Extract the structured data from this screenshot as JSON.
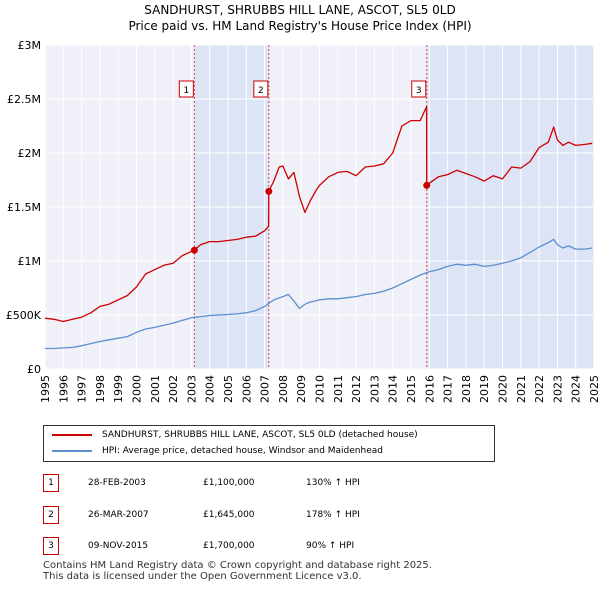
{
  "title_line1": "SANDHURST, SHRUBBS HILL LANE, ASCOT, SL5 0LD",
  "title_line2": "Price paid vs. HM Land Registry's House Price Index (HPI)",
  "chart_data": {
    "type": "line",
    "title": "SANDHURST, SHRUBBS HILL LANE, ASCOT, SL5 0LD",
    "subtitle": "Price paid vs. HM Land Registry's House Price Index (HPI)",
    "xlabel": "",
    "ylabel": "",
    "xlim": [
      1995,
      2025
    ],
    "ylim": [
      0,
      3000000
    ],
    "grid": true,
    "y_ticks": [
      {
        "value": 0,
        "label": "£0"
      },
      {
        "value": 500000,
        "label": "£500K"
      },
      {
        "value": 1000000,
        "label": "£1M"
      },
      {
        "value": 1500000,
        "label": "£1.5M"
      },
      {
        "value": 2000000,
        "label": "£2M"
      },
      {
        "value": 2500000,
        "label": "£2.5M"
      },
      {
        "value": 3000000,
        "label": "£3M"
      }
    ],
    "x_ticks": [
      "1995",
      "1996",
      "1997",
      "1998",
      "1999",
      "2000",
      "2001",
      "2002",
      "2003",
      "2004",
      "2005",
      "2006",
      "2007",
      "2008",
      "2009",
      "2010",
      "2011",
      "2012",
      "2013",
      "2014",
      "2015",
      "2016",
      "2017",
      "2018",
      "2019",
      "2020",
      "2021",
      "2022",
      "2023",
      "2024",
      "2025"
    ],
    "shaded_ranges": [
      [
        2003.16,
        2007.23
      ],
      [
        2015.86,
        2025.0
      ]
    ],
    "series": [
      {
        "name": "SANDHURST, SHRUBBS HILL LANE, ASCOT, SL5 0LD (detached house)",
        "color": "#cc0000",
        "x": [
          1995.0,
          1995.5,
          1996.0,
          1996.5,
          1997.0,
          1997.5,
          1998.0,
          1998.5,
          1999.0,
          1999.5,
          2000.0,
          2000.5,
          2001.0,
          2001.5,
          2002.0,
          2002.5,
          2003.16,
          2003.5,
          2004.0,
          2004.5,
          2005.0,
          2005.5,
          2006.0,
          2006.5,
          2007.0,
          2007.22,
          2007.23,
          2007.5,
          2007.8,
          2008.0,
          2008.3,
          2008.6,
          2008.9,
          2009.2,
          2009.5,
          2009.8,
          2010.0,
          2010.5,
          2011.0,
          2011.5,
          2012.0,
          2012.5,
          2013.0,
          2013.5,
          2014.0,
          2014.5,
          2015.0,
          2015.5,
          2015.85,
          2015.86,
          2016.0,
          2016.5,
          2017.0,
          2017.5,
          2018.0,
          2018.5,
          2019.0,
          2019.5,
          2020.0,
          2020.5,
          2021.0,
          2021.5,
          2022.0,
          2022.5,
          2022.8,
          2023.0,
          2023.3,
          2023.6,
          2024.0,
          2024.5,
          2024.9
        ],
        "values": [
          470000,
          460000,
          440000,
          460000,
          480000,
          520000,
          580000,
          600000,
          640000,
          680000,
          760000,
          880000,
          920000,
          960000,
          980000,
          1050000,
          1100000,
          1150000,
          1180000,
          1180000,
          1190000,
          1200000,
          1220000,
          1230000,
          1280000,
          1320000,
          1645000,
          1740000,
          1870000,
          1880000,
          1760000,
          1820000,
          1600000,
          1450000,
          1560000,
          1650000,
          1700000,
          1780000,
          1820000,
          1830000,
          1790000,
          1870000,
          1880000,
          1900000,
          2000000,
          2250000,
          2300000,
          2300000,
          2430000,
          1700000,
          1720000,
          1780000,
          1800000,
          1840000,
          1810000,
          1780000,
          1740000,
          1790000,
          1760000,
          1870000,
          1860000,
          1920000,
          2050000,
          2100000,
          2240000,
          2120000,
          2070000,
          2100000,
          2070000,
          2080000,
          2090000
        ]
      },
      {
        "name": "HPI: Average price, detached house, Windsor and Maidenhead",
        "color": "#5b8fd1",
        "x": [
          1995.0,
          1995.5,
          1996.0,
          1996.5,
          1997.0,
          1997.5,
          1998.0,
          1998.5,
          1999.0,
          1999.5,
          2000.0,
          2000.5,
          2001.0,
          2001.5,
          2002.0,
          2002.5,
          2003.0,
          2003.5,
          2004.0,
          2004.5,
          2005.0,
          2005.5,
          2006.0,
          2006.5,
          2007.0,
          2007.5,
          2008.0,
          2008.3,
          2008.6,
          2008.9,
          2009.2,
          2009.5,
          2010.0,
          2010.5,
          2011.0,
          2011.5,
          2012.0,
          2012.5,
          2013.0,
          2013.5,
          2014.0,
          2014.5,
          2015.0,
          2015.5,
          2016.0,
          2016.5,
          2017.0,
          2017.5,
          2018.0,
          2018.5,
          2019.0,
          2019.5,
          2020.0,
          2020.5,
          2021.0,
          2021.5,
          2022.0,
          2022.5,
          2022.8,
          2023.0,
          2023.3,
          2023.6,
          2024.0,
          2024.5,
          2024.9
        ],
        "values": [
          190000,
          190000,
          195000,
          200000,
          215000,
          235000,
          255000,
          270000,
          285000,
          300000,
          340000,
          370000,
          385000,
          405000,
          425000,
          450000,
          475000,
          485000,
          495000,
          500000,
          505000,
          510000,
          520000,
          540000,
          580000,
          640000,
          670000,
          690000,
          630000,
          560000,
          600000,
          620000,
          640000,
          650000,
          650000,
          660000,
          670000,
          690000,
          700000,
          720000,
          750000,
          790000,
          830000,
          870000,
          900000,
          920000,
          950000,
          970000,
          960000,
          970000,
          950000,
          960000,
          980000,
          1000000,
          1030000,
          1080000,
          1130000,
          1170000,
          1200000,
          1150000,
          1120000,
          1140000,
          1110000,
          1110000,
          1120000
        ]
      }
    ],
    "annotations": [
      {
        "label": "1",
        "x": 2003.16,
        "y": 1100000,
        "color": "#cc0000"
      },
      {
        "label": "2",
        "x": 2007.23,
        "y": 1645000,
        "color": "#cc0000"
      },
      {
        "label": "3",
        "x": 2015.86,
        "y": 1700000,
        "color": "#cc0000"
      }
    ]
  },
  "legend": {
    "entries": [
      {
        "label": "SANDHURST, SHRUBBS HILL LANE, ASCOT, SL5 0LD (detached house)",
        "color": "#cc0000"
      },
      {
        "label": "HPI: Average price, detached house, Windsor and Maidenhead",
        "color": "#5b8fd1"
      }
    ]
  },
  "sales": [
    {
      "num": "1",
      "date": "28-FEB-2003",
      "price": "£1,100,000",
      "hpi": "130% ↑ HPI"
    },
    {
      "num": "2",
      "date": "26-MAR-2007",
      "price": "£1,645,000",
      "hpi": "178% ↑ HPI"
    },
    {
      "num": "3",
      "date": "09-NOV-2015",
      "price": "£1,700,000",
      "hpi": "90% ↑ HPI"
    }
  ],
  "footer": {
    "line1": "Contains HM Land Registry data © Crown copyright and database right 2025.",
    "line2": "This data is licensed under the Open Government Licence v3.0."
  }
}
